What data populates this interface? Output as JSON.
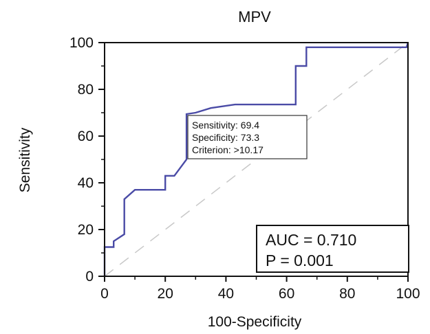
{
  "chart_data": {
    "type": "line",
    "title": "MPV",
    "xlabel": "100-Specificity",
    "ylabel": "Sensitivity",
    "xlim": [
      0,
      100
    ],
    "ylim": [
      0,
      100
    ],
    "xticks": [
      "0",
      "20",
      "40",
      "60",
      "80",
      "100"
    ],
    "yticks": [
      "0",
      "20",
      "40",
      "60",
      "80",
      "100"
    ],
    "grid": false,
    "series": [
      {
        "color": "#4a4ba6",
        "points": [
          [
            0,
            0
          ],
          [
            0,
            12.5
          ],
          [
            3,
            12.5
          ],
          [
            3,
            15
          ],
          [
            6.5,
            18
          ],
          [
            6.5,
            33
          ],
          [
            10,
            37
          ],
          [
            20,
            37
          ],
          [
            20,
            43
          ],
          [
            23,
            43
          ],
          [
            27,
            50
          ],
          [
            27,
            69.4
          ],
          [
            30,
            70
          ],
          [
            35,
            72
          ],
          [
            43,
            73.5
          ],
          [
            63,
            73.5
          ],
          [
            63,
            90
          ],
          [
            66.5,
            90
          ],
          [
            66.5,
            98
          ],
          [
            99.5,
            98
          ],
          [
            100,
            100
          ]
        ]
      }
    ],
    "reference_line": {
      "style": "dashed",
      "color": "#c8c8c8",
      "from": [
        0,
        0
      ],
      "to": [
        100,
        100
      ]
    },
    "annotation": {
      "anchor": [
        27,
        69.4
      ],
      "lines": [
        "Sensitivity: 69.4",
        "Specificity: 73.3",
        "Criterion: >10.17"
      ]
    },
    "stats_box": {
      "lines": [
        "AUC = 0.710",
        "P = 0.001"
      ],
      "placement": "bottom-right"
    }
  }
}
